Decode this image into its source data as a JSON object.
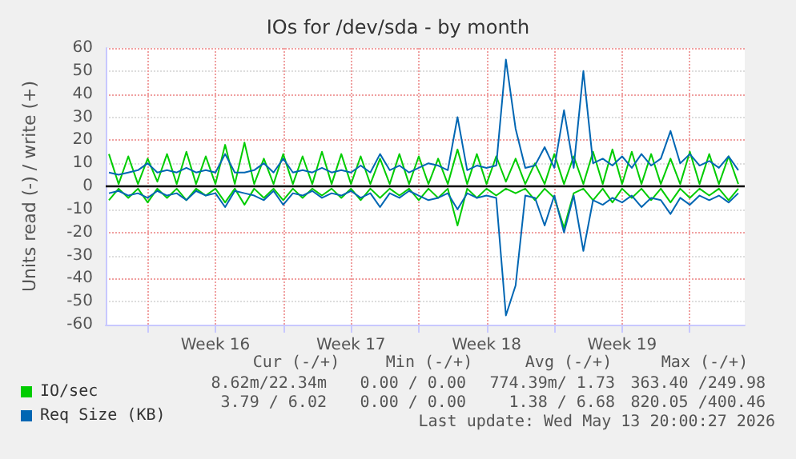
{
  "chart_data": {
    "type": "line",
    "title": "IOs for /dev/sda - by month",
    "ylabel": "Units read (-) / write (+)",
    "x": [
      "2026-04-11T00:00",
      "2026-04-11T12:00",
      "2026-04-12T00:00",
      "2026-04-12T12:00",
      "2026-04-13T00:00",
      "2026-04-13T12:00",
      "2026-04-14T00:00",
      "2026-04-14T12:00",
      "2026-04-15T00:00",
      "2026-04-15T12:00",
      "2026-04-16T00:00",
      "2026-04-16T12:00",
      "2026-04-17T00:00",
      "2026-04-17T12:00",
      "2026-04-18T00:00",
      "2026-04-18T12:00",
      "2026-04-19T00:00",
      "2026-04-19T12:00",
      "2026-04-20T00:00",
      "2026-04-20T12:00",
      "2026-04-21T00:00",
      "2026-04-21T12:00",
      "2026-04-22T00:00",
      "2026-04-22T12:00",
      "2026-04-23T00:00",
      "2026-04-23T12:00",
      "2026-04-24T00:00",
      "2026-04-24T12:00",
      "2026-04-25T00:00",
      "2026-04-25T12:00",
      "2026-04-26T00:00",
      "2026-04-26T12:00",
      "2026-04-27T00:00",
      "2026-04-27T12:00",
      "2026-04-28T00:00",
      "2026-04-28T12:00",
      "2026-04-29T00:00",
      "2026-04-29T12:00",
      "2026-04-30T00:00",
      "2026-04-30T12:00",
      "2026-05-01T00:00",
      "2026-05-01T12:00",
      "2026-05-02T00:00",
      "2026-05-02T12:00",
      "2026-05-03T00:00",
      "2026-05-03T12:00",
      "2026-05-04T00:00",
      "2026-05-04T12:00",
      "2026-05-05T00:00",
      "2026-05-05T12:00",
      "2026-05-06T00:00",
      "2026-05-06T12:00",
      "2026-05-07T00:00",
      "2026-05-07T12:00",
      "2026-05-08T00:00",
      "2026-05-08T12:00",
      "2026-05-09T00:00",
      "2026-05-09T12:00",
      "2026-05-10T00:00",
      "2026-05-10T12:00",
      "2026-05-11T00:00",
      "2026-05-11T12:00",
      "2026-05-12T00:00",
      "2026-05-12T12:00",
      "2026-05-13T00:00",
      "2026-05-13T12:00"
    ],
    "series": [
      {
        "color": "#00cc00",
        "values": [
          -6,
          -1,
          -5,
          -1,
          -7,
          -1,
          -5,
          -1,
          -6,
          -1,
          -4,
          -1,
          -7,
          -1,
          -8,
          -1,
          -5,
          -1,
          -6,
          -1,
          -5,
          -1,
          -4,
          -1,
          -5,
          -1,
          -6,
          -1,
          -5,
          -1,
          -4,
          -1,
          -6,
          -1,
          -5,
          -1,
          -17,
          -1,
          -5,
          -1,
          -4,
          -1,
          -3,
          -1,
          -6,
          -1,
          -5,
          -18,
          -3,
          -1,
          -6,
          -1,
          -7,
          -1,
          -5,
          -1,
          -6,
          -1,
          -7,
          -1,
          -5,
          -1,
          -4,
          -1,
          -6,
          -1
        ]
      },
      {
        "name": "IO/sec",
        "color": "#00cc00",
        "values": [
          14,
          1,
          13,
          1,
          12,
          2,
          14,
          1,
          15,
          1,
          13,
          1,
          18,
          1,
          19,
          1,
          12,
          1,
          14,
          1,
          13,
          1,
          15,
          1,
          14,
          1,
          13,
          1,
          12,
          1,
          14,
          1,
          13,
          1,
          12,
          1,
          16,
          1,
          14,
          1,
          13,
          2,
          12,
          1,
          10,
          1,
          14,
          1,
          13,
          1,
          15,
          1,
          16,
          1,
          15,
          1,
          14,
          1,
          12,
          1,
          15,
          1,
          14,
          1,
          13,
          1
        ]
      },
      {
        "color": "#0066b3",
        "values": [
          -3,
          -2,
          -4,
          -3,
          -5,
          -2,
          -4,
          -3,
          -6,
          -2,
          -4,
          -3,
          -9,
          -2,
          -3,
          -4,
          -6,
          -2,
          -8,
          -3,
          -4,
          -2,
          -5,
          -3,
          -4,
          -2,
          -5,
          -3,
          -9,
          -3,
          -5,
          -2,
          -4,
          -6,
          -5,
          -3,
          -10,
          -3,
          -5,
          -4,
          -5,
          -56,
          -43,
          -4,
          -5,
          -17,
          -4,
          -20,
          -4,
          -28,
          -6,
          -8,
          -5,
          -7,
          -4,
          -9,
          -5,
          -6,
          -12,
          -5,
          -8,
          -4,
          -6,
          -4,
          -7,
          -3
        ]
      },
      {
        "name": "Req Size (KB)",
        "color": "#0066b3",
        "values": [
          6,
          5,
          6,
          7,
          10,
          6,
          7,
          6,
          8,
          6,
          7,
          6,
          14,
          6,
          6,
          7,
          10,
          6,
          12,
          6,
          7,
          6,
          8,
          6,
          7,
          6,
          9,
          6,
          14,
          7,
          9,
          6,
          8,
          10,
          9,
          7,
          30,
          7,
          9,
          8,
          9,
          55,
          25,
          8,
          9,
          17,
          8,
          33,
          8,
          50,
          10,
          12,
          9,
          13,
          8,
          14,
          9,
          12,
          24,
          10,
          14,
          9,
          11,
          8,
          13,
          7
        ]
      }
    ],
    "xlim": [
      "2026-04-10T20:00",
      "2026-05-13T20:00"
    ],
    "xticks": [
      {
        "value": "2026-04-13T00:00",
        "label": null
      },
      {
        "value": "2026-04-16T12:00",
        "label": "Week 16"
      },
      {
        "value": "2026-04-20T00:00",
        "label": null
      },
      {
        "value": "2026-04-23T12:00",
        "label": "Week 17"
      },
      {
        "value": "2026-04-27T00:00",
        "label": null
      },
      {
        "value": "2026-04-30T12:00",
        "label": "Week 18"
      },
      {
        "value": "2026-05-04T00:00",
        "label": null
      },
      {
        "value": "2026-05-07T12:00",
        "label": "Week 19"
      },
      {
        "value": "2026-05-11T00:00",
        "label": null
      }
    ],
    "ylim": [
      -60,
      60
    ],
    "yticks": [
      -60,
      -50,
      -40,
      -30,
      -20,
      -10,
      0,
      10,
      20,
      30,
      40,
      50,
      60
    ],
    "ref_lines": [
      {
        "axis": "y",
        "value": 0,
        "color": "#000000"
      }
    ],
    "grid": true,
    "legend": "bottom left",
    "marker": "none",
    "line_style": "solid",
    "annotations": [
      "Cur (-/+)",
      "Min (-/+)",
      "Avg (-/+)",
      "Max (-/+)",
      "8.62m/22.34m",
      "0.00 / 0.00",
      "774.39m/ 1.73",
      "363.40 /249.98",
      "3.79 / 6.02",
      "0.00 / 0.00",
      "1.38 / 6.68",
      "820.05 /400.46",
      "Last update: Wed May 13 20:00:27 2026"
    ]
  }
}
